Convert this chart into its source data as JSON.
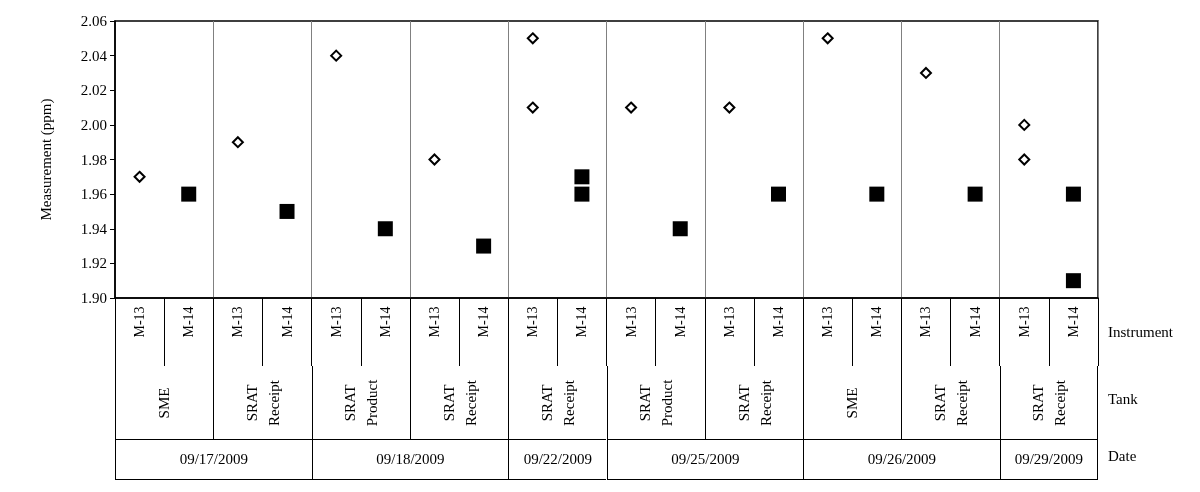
{
  "chart_data": {
    "type": "scatter",
    "ylabel": "Measurement (ppm)",
    "categories": [
      "M-13",
      "M-14",
      "M-13",
      "M-14",
      "M-13",
      "M-14",
      "M-13",
      "M-14",
      "M-13",
      "M-14",
      "M-13",
      "M-14",
      "M-13",
      "M-14",
      "M-13",
      "M-14",
      "M-13",
      "M-14",
      "M-13",
      "M-14"
    ],
    "series": [
      {
        "color": "#000000",
        "marker": "diamond",
        "values": [
          1.97,
          null,
          1.99,
          null,
          2.04,
          null,
          1.98,
          null,
          2.05,
          null,
          2.01,
          null,
          2.01,
          null,
          2.05,
          null,
          2.03,
          null,
          2.0,
          null
        ]
      },
      {
        "color": "#000000",
        "marker": "diamond",
        "values": [
          null,
          null,
          null,
          null,
          null,
          null,
          null,
          null,
          2.01,
          null,
          null,
          null,
          null,
          null,
          null,
          null,
          null,
          null,
          1.98,
          null
        ]
      },
      {
        "color": "#000000",
        "marker": "square",
        "values": [
          null,
          1.96,
          null,
          1.95,
          null,
          1.94,
          null,
          1.93,
          null,
          1.97,
          null,
          1.94,
          null,
          1.96,
          null,
          1.96,
          null,
          1.96,
          null,
          1.96
        ]
      },
      {
        "color": "#000000",
        "marker": "square",
        "values": [
          null,
          null,
          null,
          null,
          null,
          null,
          null,
          null,
          null,
          1.96,
          null,
          null,
          null,
          null,
          null,
          null,
          null,
          null,
          null,
          1.91
        ]
      }
    ],
    "ylim": [
      1.9,
      2.06
    ],
    "yticks": [
      {
        "value": 1.9,
        "label": "1.90"
      },
      {
        "value": 1.92,
        "label": "1.92"
      },
      {
        "value": 1.94,
        "label": "1.94"
      },
      {
        "value": 1.96,
        "label": "1.96"
      },
      {
        "value": 1.98,
        "label": "1.98"
      },
      {
        "value": 2.0,
        "label": "2.00"
      },
      {
        "value": 2.02,
        "label": "2.02"
      },
      {
        "value": 2.04,
        "label": "2.04"
      },
      {
        "value": 2.06,
        "label": "2.06"
      }
    ],
    "grid": false,
    "annotations": [
      "Instrument",
      "Tank",
      "Date",
      "SME",
      "SRAT Receipt",
      "SRAT Product",
      "SRAT Receipt",
      "SRAT Receipt",
      "SRAT Product",
      "SRAT Receipt",
      "SME",
      "SRAT Receipt",
      "SRAT Receipt",
      "09/17/2009",
      "09/18/2009",
      "09/22/2009",
      "09/25/2009",
      "09/26/2009",
      "09/29/2009"
    ]
  }
}
